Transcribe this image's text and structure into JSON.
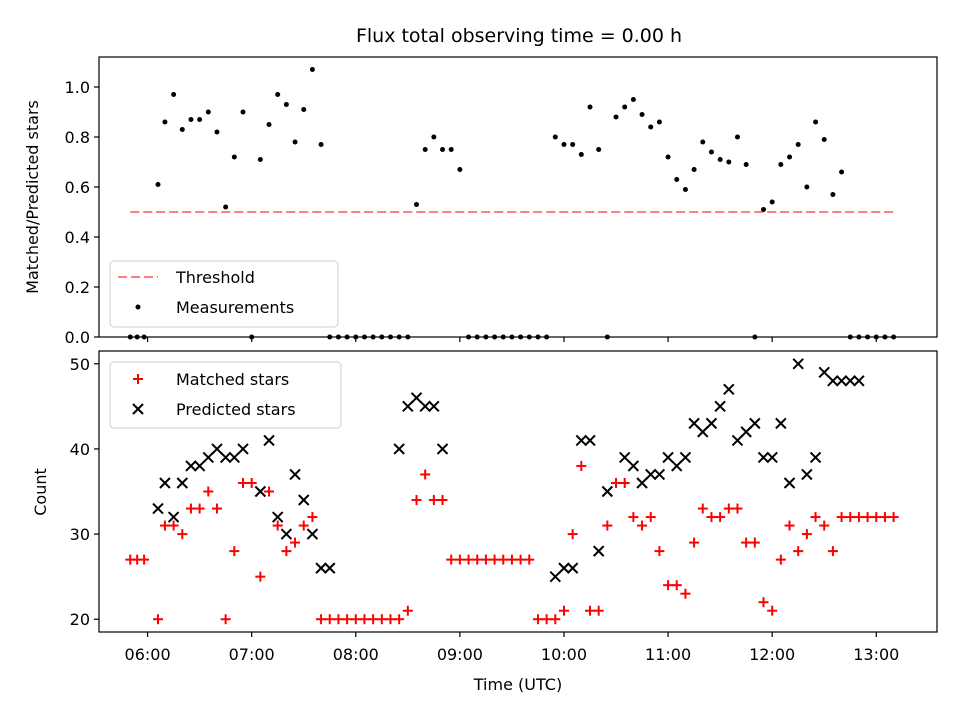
{
  "chart_data": [
    {
      "type": "scatter",
      "title": "Flux total observing time = 0.00 h",
      "xlabel": "",
      "ylabel": "Matched/Predicted stars",
      "xlim": [
        "05:32",
        "13:35"
      ],
      "ylim": [
        0,
        1.12
      ],
      "yticks": [
        "0.0",
        "0.2",
        "0.4",
        "0.6",
        "0.8",
        "1.0"
      ],
      "grid": false,
      "legend_placement": "lower-left",
      "series": [
        {
          "name": "Threshold",
          "kind": "dashed-line",
          "color": "#ff7f7f",
          "x": [
            "05:50",
            "13:10"
          ],
          "y": [
            0.5,
            0.5
          ]
        },
        {
          "name": "Measurements",
          "kind": "dot",
          "color": "#000000",
          "x": [
            "05:50",
            "05:54",
            "05:58",
            "06:06",
            "06:10",
            "06:15",
            "06:20",
            "06:25",
            "06:30",
            "06:35",
            "06:40",
            "06:45",
            "06:50",
            "06:55",
            "07:00",
            "07:05",
            "07:10",
            "07:15",
            "07:20",
            "07:25",
            "07:30",
            "07:35",
            "07:40",
            "07:45",
            "07:50",
            "07:55",
            "08:00",
            "08:05",
            "08:10",
            "08:15",
            "08:20",
            "08:25",
            "08:30",
            "08:35",
            "08:40",
            "08:45",
            "08:50",
            "08:55",
            "09:00",
            "09:05",
            "09:10",
            "09:15",
            "09:20",
            "09:25",
            "09:30",
            "09:35",
            "09:40",
            "09:45",
            "09:50",
            "09:55",
            "10:00",
            "10:05",
            "10:10",
            "10:15",
            "10:20",
            "10:25",
            "10:30",
            "10:35",
            "10:40",
            "10:45",
            "10:50",
            "10:55",
            "11:00",
            "11:05",
            "11:10",
            "11:15",
            "11:20",
            "11:25",
            "11:30",
            "11:35",
            "11:40",
            "11:45",
            "11:50",
            "11:55",
            "12:00",
            "12:05",
            "12:10",
            "12:15",
            "12:20",
            "12:25",
            "12:30",
            "12:35",
            "12:40",
            "12:45",
            "12:50",
            "12:55",
            "13:00",
            "13:05",
            "13:10"
          ],
          "y": [
            0,
            0,
            0,
            0.61,
            0.86,
            0.97,
            0.83,
            0.87,
            0.87,
            0.9,
            0.82,
            0.52,
            0.72,
            0.9,
            0,
            0.71,
            0.85,
            0.97,
            0.93,
            0.78,
            0.91,
            1.07,
            0.77,
            0,
            0,
            0,
            0,
            0,
            0,
            0,
            0,
            0,
            0,
            0.53,
            0.75,
            0.8,
            0.75,
            0.75,
            0.67,
            0,
            0,
            0,
            0,
            0,
            0,
            0,
            0,
            0,
            0,
            0.8,
            0.77,
            0.77,
            0.73,
            0.92,
            0.75,
            0,
            0.88,
            0.92,
            0.95,
            0.89,
            0.84,
            0.86,
            0.72,
            0.63,
            0.59,
            0.67,
            0.78,
            0.74,
            0.71,
            0.7,
            0.8,
            0.69,
            0,
            0.51,
            0.54,
            0.69,
            0.72,
            0.77,
            0.6,
            0.86,
            0.79,
            0.57,
            0.66,
            0,
            0,
            0,
            0,
            0,
            0
          ]
        }
      ]
    },
    {
      "type": "scatter",
      "title": "",
      "xlabel": "Time (UTC)",
      "ylabel": "Count",
      "xlim": [
        "05:32",
        "13:35"
      ],
      "ylim": [
        18.5,
        51.5
      ],
      "xticks": [
        "06:00",
        "07:00",
        "08:00",
        "09:00",
        "10:00",
        "11:00",
        "12:00",
        "13:00"
      ],
      "yticks": [
        "20",
        "30",
        "40",
        "50"
      ],
      "grid": false,
      "legend_placement": "upper-left",
      "series": [
        {
          "name": "Matched stars",
          "kind": "plus",
          "color": "#ff0000",
          "x": [
            "05:50",
            "05:54",
            "05:58",
            "06:06",
            "06:10",
            "06:15",
            "06:20",
            "06:25",
            "06:30",
            "06:35",
            "06:40",
            "06:45",
            "06:50",
            "06:55",
            "07:00",
            "07:05",
            "07:10",
            "07:15",
            "07:20",
            "07:25",
            "07:30",
            "07:35",
            "07:40",
            "07:45",
            "07:50",
            "07:55",
            "08:00",
            "08:05",
            "08:10",
            "08:15",
            "08:20",
            "08:25",
            "08:30",
            "08:35",
            "08:40",
            "08:45",
            "08:50",
            "08:55",
            "09:00",
            "09:05",
            "09:10",
            "09:15",
            "09:20",
            "09:25",
            "09:30",
            "09:35",
            "09:40",
            "09:45",
            "09:50",
            "09:55",
            "10:00",
            "10:05",
            "10:10",
            "10:15",
            "10:20",
            "10:25",
            "10:30",
            "10:35",
            "10:40",
            "10:45",
            "10:50",
            "10:55",
            "11:00",
            "11:05",
            "11:10",
            "11:15",
            "11:20",
            "11:25",
            "11:30",
            "11:35",
            "11:40",
            "11:45",
            "11:50",
            "11:55",
            "12:00",
            "12:05",
            "12:10",
            "12:15",
            "12:20",
            "12:25",
            "12:30",
            "12:35",
            "12:40",
            "12:45",
            "12:50",
            "12:55",
            "13:00",
            "13:05",
            "13:10"
          ],
          "y": [
            27,
            27,
            27,
            20,
            31,
            31,
            30,
            33,
            33,
            35,
            33,
            20,
            28,
            36,
            36,
            25,
            35,
            31,
            28,
            29,
            31,
            32,
            20,
            20,
            20,
            20,
            20,
            20,
            20,
            20,
            20,
            20,
            21,
            34,
            37,
            34,
            34,
            27,
            27,
            27,
            27,
            27,
            27,
            27,
            27,
            27,
            27,
            20,
            20,
            20,
            21,
            30,
            38,
            21,
            21,
            31,
            36,
            36,
            32,
            31,
            32,
            28,
            24,
            24,
            23,
            29,
            33,
            32,
            32,
            33,
            33,
            29,
            29,
            22,
            21,
            27,
            31,
            28,
            30,
            32,
            31,
            28,
            32,
            32,
            32,
            32,
            32,
            32,
            32
          ]
        },
        {
          "name": "Predicted stars",
          "kind": "x",
          "color": "#000000",
          "x": [
            "06:06",
            "06:10",
            "06:15",
            "06:20",
            "06:25",
            "06:30",
            "06:35",
            "06:40",
            "06:45",
            "06:50",
            "06:55",
            "07:05",
            "07:10",
            "07:15",
            "07:20",
            "07:25",
            "07:30",
            "07:35",
            "07:40",
            "07:45",
            "08:25",
            "08:30",
            "08:35",
            "08:40",
            "08:45",
            "08:50",
            "09:55",
            "10:00",
            "10:05",
            "10:10",
            "10:15",
            "10:20",
            "10:25",
            "10:35",
            "10:40",
            "10:45",
            "10:50",
            "10:55",
            "11:00",
            "11:05",
            "11:10",
            "11:15",
            "11:20",
            "11:25",
            "11:30",
            "11:35",
            "11:40",
            "11:45",
            "11:50",
            "11:55",
            "12:00",
            "12:05",
            "12:10",
            "12:15",
            "12:20",
            "12:25",
            "12:30",
            "12:35",
            "12:40",
            "12:45",
            "12:50"
          ],
          "y": [
            33,
            36,
            32,
            36,
            38,
            38,
            39,
            40,
            39,
            39,
            40,
            35,
            41,
            32,
            30,
            37,
            34,
            30,
            26,
            26,
            40,
            45,
            46,
            45,
            45,
            40,
            25,
            26,
            26,
            41,
            41,
            28,
            35,
            39,
            38,
            36,
            37,
            37,
            39,
            38,
            39,
            43,
            42,
            43,
            45,
            47,
            41,
            42,
            43,
            39,
            39,
            43,
            36,
            50,
            37,
            39,
            49,
            48,
            48,
            48,
            48
          ]
        }
      ]
    }
  ]
}
